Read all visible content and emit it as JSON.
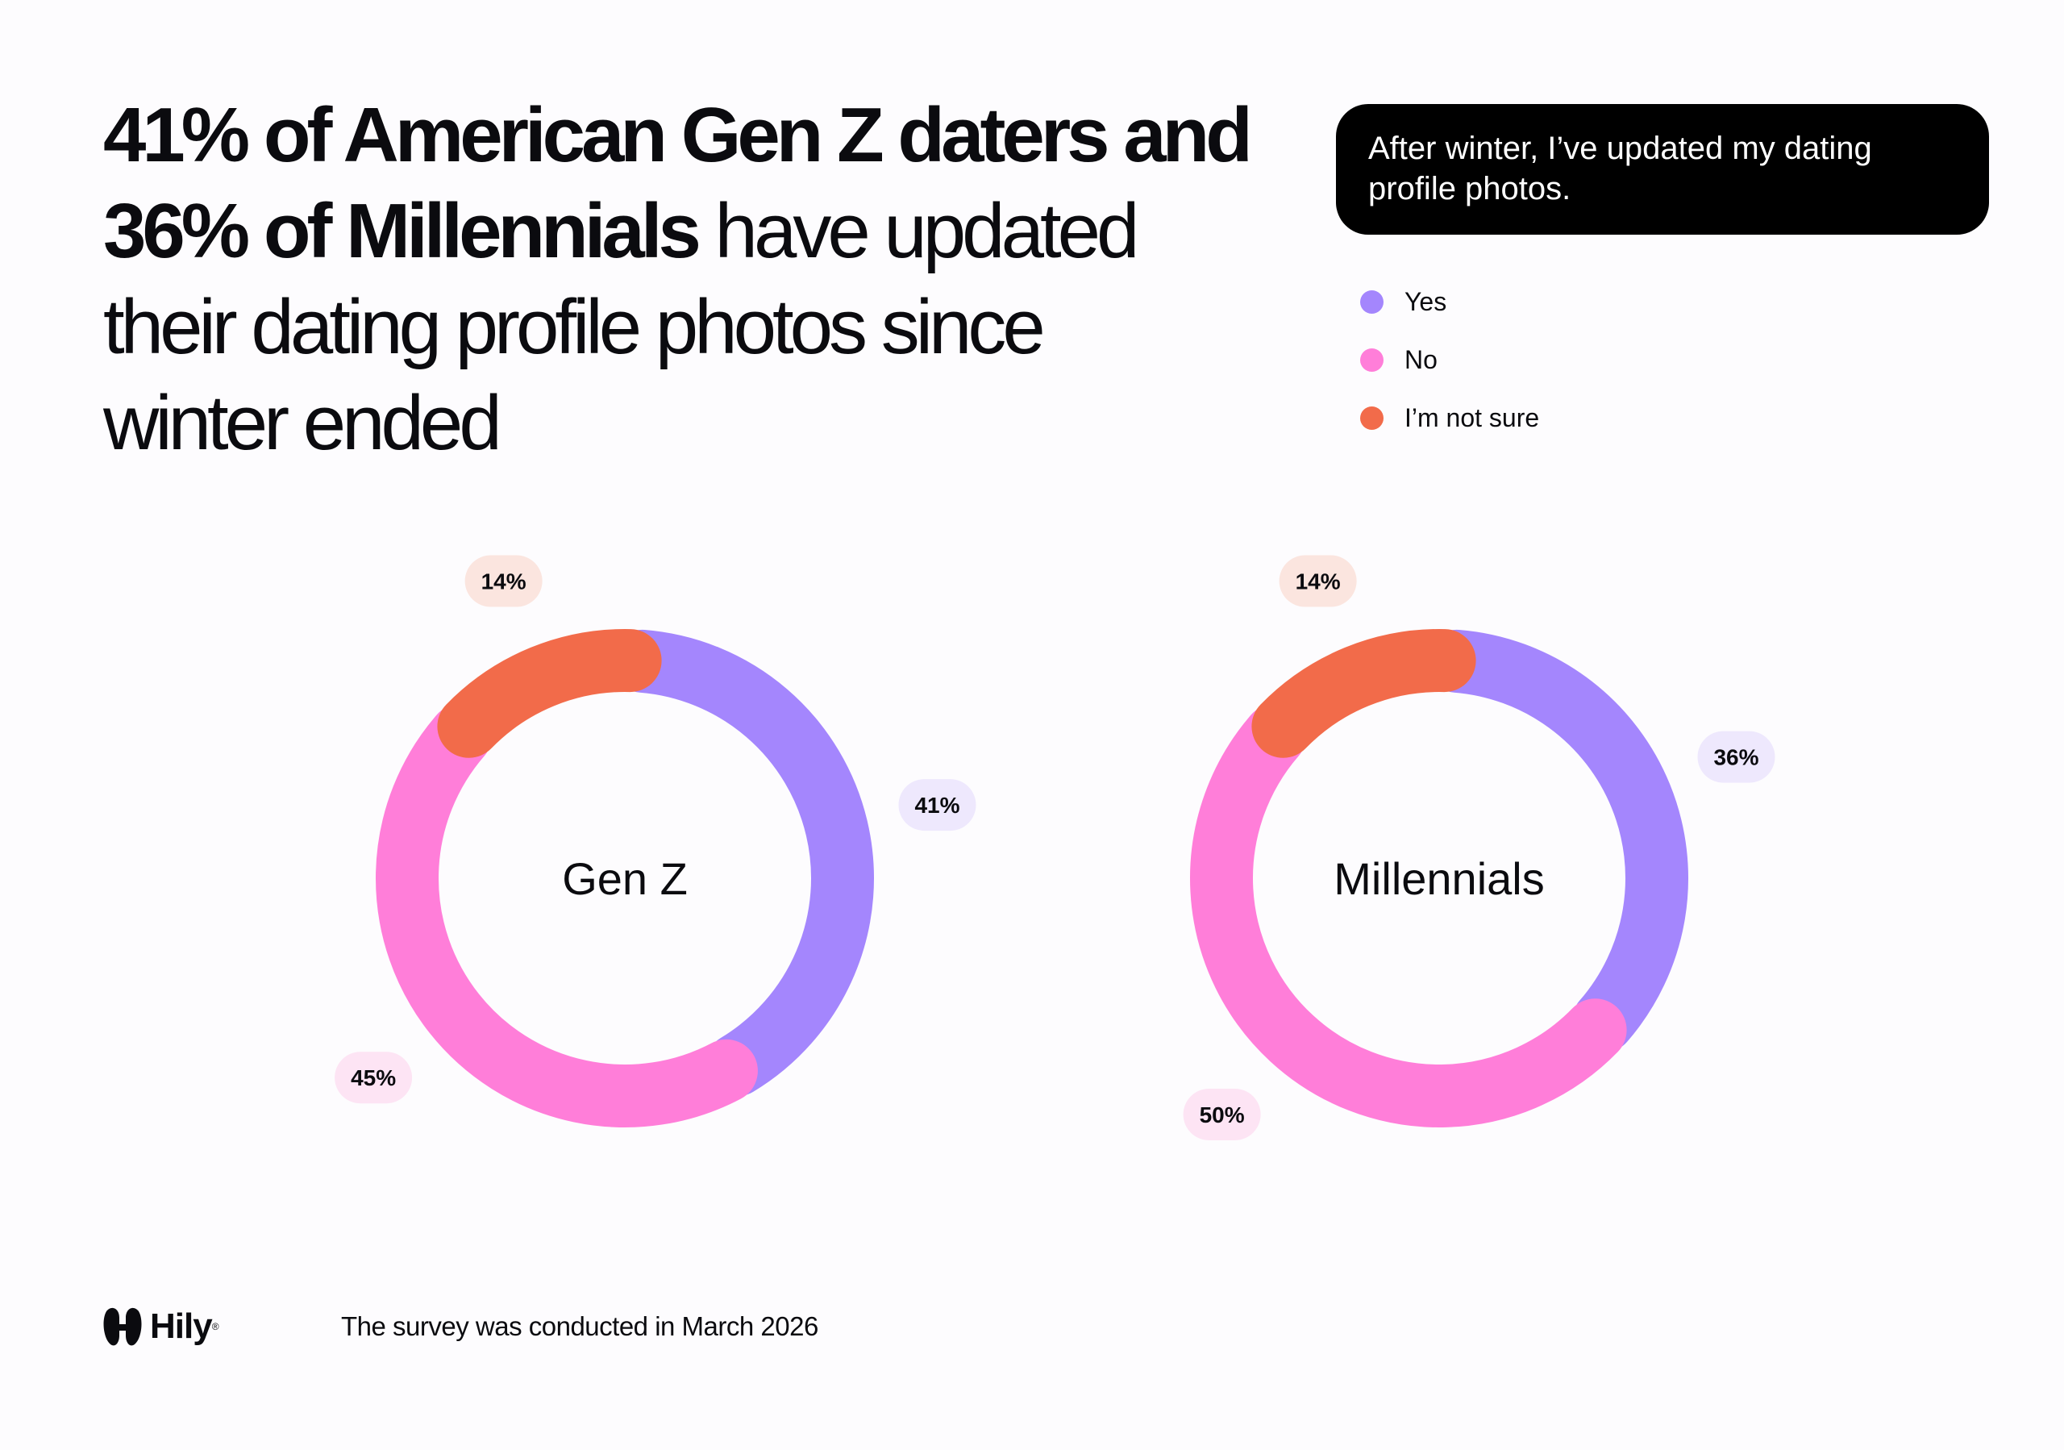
{
  "headline": {
    "bold_1": "41% of American Gen Z daters and",
    "bold_2": "36% of Millennials",
    "regular_1": " have updated",
    "regular_2": "their dating profile photos since",
    "regular_3": "winter ended"
  },
  "question": "After winter, I’ve updated my dating profile photos.",
  "colors": {
    "yes": "#a486fd",
    "no": "#ff7ed9",
    "not_sure": "#f26b4a",
    "yes_bg": "#eee8fd",
    "no_bg": "#fde4f4",
    "not_sure_bg": "#fbe5df"
  },
  "legend": [
    {
      "label": "Yes",
      "color": "#a486fd"
    },
    {
      "label": "No",
      "color": "#ff7ed9"
    },
    {
      "label": "I’m not sure",
      "color": "#f26b4a"
    }
  ],
  "chart_data": [
    {
      "type": "pie",
      "variant": "donut",
      "center_label": "Gen Z",
      "categories": [
        "Yes",
        "No",
        "I’m not sure"
      ],
      "values": [
        41,
        45,
        14
      ],
      "labels": [
        "41%",
        "45%",
        "14%"
      ]
    },
    {
      "type": "pie",
      "variant": "donut",
      "center_label": "Millennials",
      "categories": [
        "Yes",
        "No",
        "I’m not sure"
      ],
      "values": [
        36,
        50,
        14
      ],
      "labels": [
        "36%",
        "50%",
        "14%"
      ]
    }
  ],
  "footer": {
    "brand": "Hily",
    "brand_mark": "®",
    "note": "The survey was conducted in March 2026"
  }
}
